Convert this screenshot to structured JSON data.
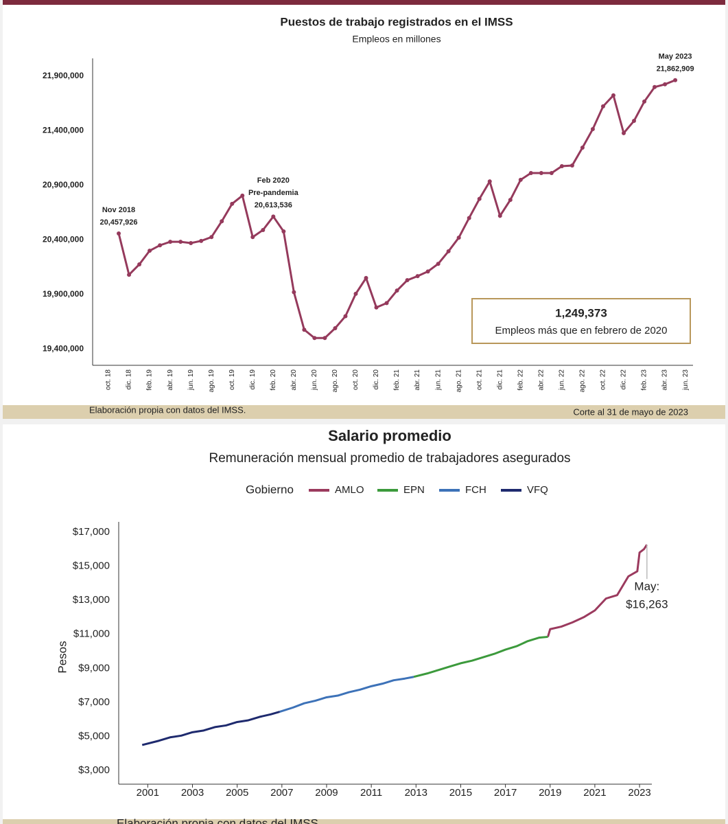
{
  "chart_data": [
    {
      "type": "line",
      "title": "Puestos de trabajo registrados en el IMSS",
      "subtitle": "Empleos en millones",
      "color": "#953a5c",
      "categories": [
        "oct. 18",
        null,
        "dic. 18",
        null,
        "feb. 19",
        null,
        "abr. 19",
        null,
        "jun. 19",
        null,
        "ago. 19",
        null,
        "oct. 19",
        null,
        "dic. 19",
        null,
        "feb. 20",
        null,
        "abr. 20",
        null,
        "jun. 20",
        null,
        "ago. 20",
        null,
        "oct. 20",
        null,
        "dic. 20",
        null,
        "feb. 21",
        null,
        "abr. 21",
        null,
        "jun. 21",
        null,
        "ago. 21",
        null,
        "oct. 21",
        null,
        "dic. 21",
        null,
        "feb. 22",
        null,
        "abr. 22",
        null,
        "jun. 22",
        null,
        "ago. 22",
        null,
        "oct. 22",
        null,
        "dic. 22",
        null,
        "feb. 23",
        null,
        "abr. 23",
        null,
        "jun. 23"
      ],
      "values": [
        null,
        20457926,
        20080000,
        20175000,
        20300000,
        20350000,
        20382000,
        20382000,
        20370000,
        20390000,
        20425000,
        20570000,
        20730000,
        20805000,
        20425000,
        20490000,
        20613536,
        20477000,
        19920000,
        19576000,
        19500000,
        19500000,
        19590000,
        19700000,
        19905000,
        20050000,
        19780000,
        19820000,
        19935000,
        20030000,
        20067000,
        20110000,
        20180000,
        20295000,
        20420000,
        20600000,
        20775000,
        20935000,
        20620000,
        20766000,
        20950000,
        21012000,
        21012000,
        21012000,
        21075000,
        21081000,
        21245000,
        21415000,
        21623000,
        21724000,
        21378000,
        21490000,
        21667000,
        21800000,
        21825000,
        21862909,
        null
      ],
      "value_labels": [
        null,
        "20,457,926",
        null,
        null,
        null,
        null,
        null,
        null,
        null,
        null,
        null,
        null,
        null,
        null,
        null,
        null,
        "20,613,536",
        null,
        null,
        null,
        null,
        null,
        null,
        null,
        null,
        null,
        null,
        null,
        null,
        null,
        null,
        null,
        null,
        null,
        null,
        null,
        null,
        null,
        null,
        null,
        null,
        null,
        null,
        null,
        null,
        null,
        null,
        null,
        null,
        null,
        null,
        null,
        null,
        null,
        null,
        "21,862,909",
        null
      ],
      "annotations": [
        [
          "Nov 2018"
        ],
        [
          "Feb 2020",
          "Pre-pandemia"
        ],
        [
          "May 2023"
        ]
      ],
      "ylim": [
        19250000,
        22000000
      ],
      "yticks": [
        {
          "value": 19400000,
          "label": "19,400,000"
        },
        {
          "value": 19900000,
          "label": "19,900,000"
        },
        {
          "value": 20400000,
          "label": "20,400,000"
        },
        {
          "value": 20900000,
          "label": "20,900,000"
        },
        {
          "value": 21400000,
          "label": "21,400,000"
        },
        {
          "value": 21900000,
          "label": "21,900,000"
        }
      ],
      "callout": {
        "value": "1,249,373",
        "text": "Empleos más que en febrero de 2020"
      },
      "source": "Elaboración propia con datos del IMSS.",
      "note": "Corte al 31 de mayo de 2023"
    },
    {
      "type": "line",
      "title": "Salario promedio",
      "subtitle": "Remuneración mensual promedio de trabajadores asegurados",
      "legend_title": "Gobierno",
      "ylabel": "Pesos",
      "series": [
        {
          "name": "AMLO",
          "color": "#9b3a5e",
          "x": [
            2018.9,
            2019.0,
            2019.5,
            2020.0,
            2020.5,
            2021.0,
            2021.5,
            2022.0,
            2022.5,
            2022.9,
            2023.0,
            2023.2,
            2023.33
          ],
          "values": [
            10850,
            11300,
            11450,
            11700,
            12000,
            12400,
            13100,
            13300,
            14400,
            14700,
            15800,
            16000,
            16263
          ],
          "value_labels": [
            null,
            null,
            null,
            null,
            null,
            null,
            null,
            null,
            null,
            null,
            null,
            null,
            "$16,263"
          ],
          "annotations": [
            null,
            null,
            null,
            null,
            null,
            null,
            null,
            null,
            null,
            null,
            null,
            null,
            "May:"
          ]
        },
        {
          "name": "EPN",
          "color": "#3c9a3c",
          "x": [
            2012.9,
            2013.5,
            2014.0,
            2014.5,
            2015.0,
            2015.5,
            2016.0,
            2016.5,
            2017.0,
            2017.5,
            2018.0,
            2018.5,
            2018.9
          ],
          "values": [
            8500,
            8700,
            8900,
            9100,
            9300,
            9450,
            9650,
            9850,
            10100,
            10300,
            10600,
            10800,
            10850
          ]
        },
        {
          "name": "FCH",
          "color": "#3d72b8",
          "x": [
            2006.9,
            2007.5,
            2008.0,
            2008.5,
            2009.0,
            2009.5,
            2010.0,
            2010.5,
            2011.0,
            2011.5,
            2012.0,
            2012.5,
            2012.9
          ],
          "values": [
            6450,
            6700,
            6950,
            7100,
            7300,
            7400,
            7600,
            7750,
            7950,
            8100,
            8300,
            8400,
            8500
          ]
        },
        {
          "name": "VFQ",
          "color": "#1e2a6e",
          "x": [
            2000.75,
            2001.5,
            2002.0,
            2002.5,
            2003.0,
            2003.5,
            2004.0,
            2004.5,
            2005.0,
            2005.5,
            2006.0,
            2006.5,
            2006.9
          ],
          "values": [
            4500,
            4750,
            4950,
            5050,
            5250,
            5350,
            5550,
            5650,
            5850,
            5950,
            6150,
            6300,
            6450
          ]
        }
      ],
      "xlim": [
        1999.7,
        2023.55
      ],
      "xticks": [
        2001,
        2003,
        2005,
        2007,
        2009,
        2011,
        2013,
        2015,
        2017,
        2019,
        2021,
        2023
      ],
      "ylim": [
        2200,
        17600
      ],
      "yticks": [
        {
          "value": 3000,
          "label": "$3,000"
        },
        {
          "value": 5000,
          "label": "$5,000"
        },
        {
          "value": 7000,
          "label": "$7,000"
        },
        {
          "value": 9000,
          "label": "$9,000"
        },
        {
          "value": 11000,
          "label": "$11,000"
        },
        {
          "value": 13000,
          "label": "$13,000"
        },
        {
          "value": 15000,
          "label": "$15,000"
        },
        {
          "value": 17000,
          "label": "$17,000"
        }
      ],
      "source": "Elaboración propia con datos del IMSS."
    }
  ]
}
